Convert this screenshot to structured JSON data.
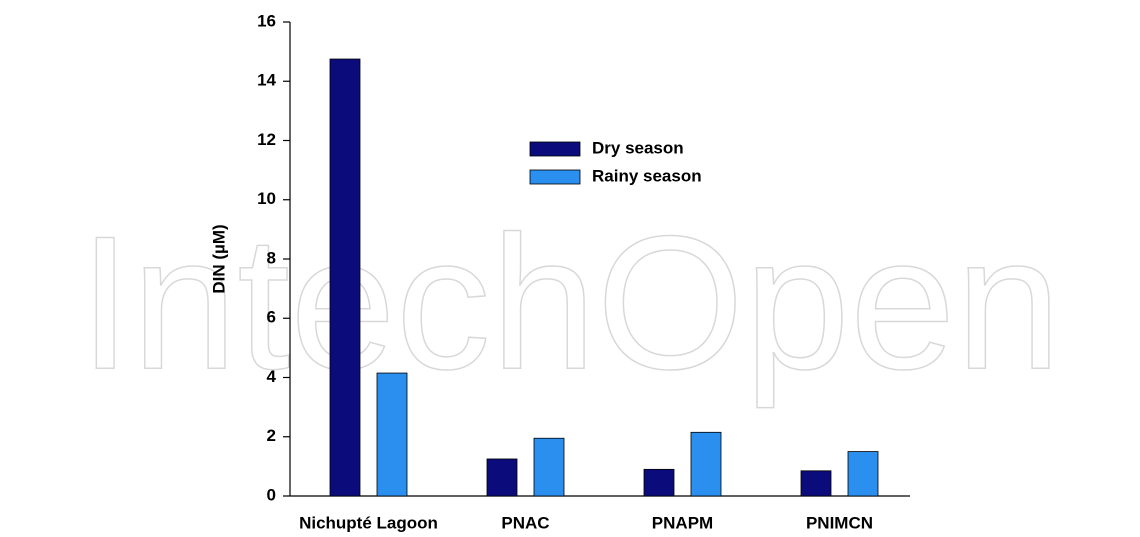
{
  "watermark": "IntechOpen",
  "chart_data": {
    "type": "bar",
    "ylabel": "DIN (µM)",
    "categories": [
      "Nichupté Lagoon",
      "PNAC",
      "PNAPM",
      "PNIMCN"
    ],
    "series": [
      {
        "name": "Dry season",
        "color": "#0b0b7c",
        "values": [
          14.75,
          1.25,
          0.9,
          0.85
        ]
      },
      {
        "name": "Rainy season",
        "color": "#2b8ff0",
        "values": [
          4.15,
          1.95,
          2.15,
          1.5
        ]
      }
    ],
    "ylim": [
      0,
      16
    ],
    "yticks": [
      0,
      2,
      4,
      6,
      8,
      10,
      12,
      14,
      16
    ],
    "grid": false,
    "legend": "top-center"
  }
}
